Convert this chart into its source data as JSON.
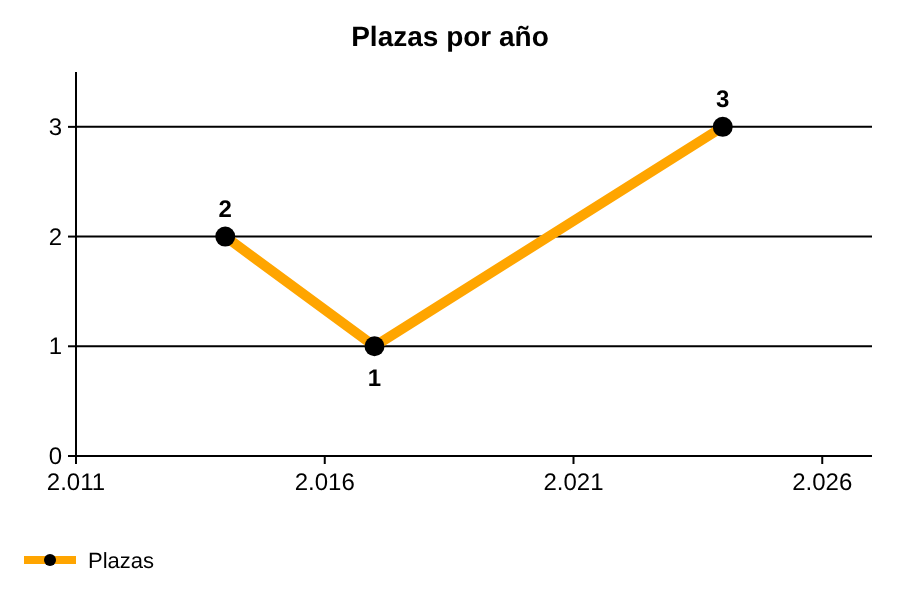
{
  "chart_data": {
    "type": "line",
    "title": "Plazas por año",
    "x": [
      2014,
      2017,
      2024
    ],
    "series": [
      {
        "name": "Plazas",
        "color": "#ffa500",
        "values": [
          2,
          1,
          3
        ]
      }
    ],
    "xlim": [
      2011,
      2027
    ],
    "xticks": [
      {
        "value": 2011,
        "label": "2.011"
      },
      {
        "value": 2016,
        "label": "2.016"
      },
      {
        "value": 2021,
        "label": "2.021"
      },
      {
        "value": 2026,
        "label": "2.026"
      }
    ],
    "ylim": [
      0,
      3.5
    ],
    "yticks": [
      0,
      1,
      2,
      3
    ],
    "grid": "y",
    "legend": "bottom left",
    "marker": "circle",
    "line_style": "solid",
    "data_labels": true
  }
}
